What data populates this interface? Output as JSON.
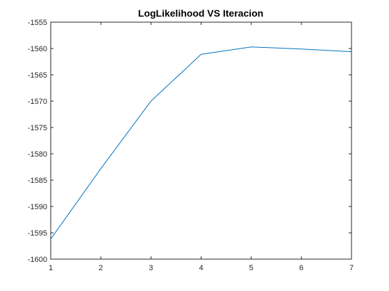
{
  "chart_data": {
    "type": "line",
    "title": "LogLikelihood VS Iteracion",
    "xlabel": "",
    "ylabel": "",
    "xlim": [
      1,
      7
    ],
    "ylim": [
      -1600,
      -1555
    ],
    "x_ticks": [
      1,
      2,
      3,
      4,
      5,
      6,
      7
    ],
    "x_tick_labels": [
      "1",
      "2",
      "3",
      "4",
      "5",
      "6",
      "7"
    ],
    "y_ticks": [
      -1600,
      -1595,
      -1590,
      -1585,
      -1580,
      -1575,
      -1570,
      -1565,
      -1560,
      -1555
    ],
    "y_tick_labels": [
      "-1600",
      "-1595",
      "-1590",
      "-1585",
      "-1580",
      "-1575",
      "-1570",
      "-1565",
      "-1560",
      "-1555"
    ],
    "grid": false,
    "legend": "none",
    "series": [
      {
        "color": "#0072BD",
        "x": [
          1,
          2,
          3,
          4,
          5,
          6,
          7
        ],
        "y": [
          -1596.2,
          -1582.8,
          -1570.0,
          -1561.1,
          -1559.7,
          -1560.1,
          -1560.6
        ]
      }
    ]
  }
}
